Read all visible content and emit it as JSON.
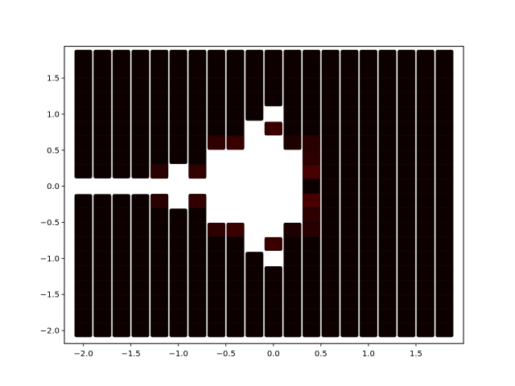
{
  "chart_data": {
    "type": "heatmap",
    "title": "",
    "xlabel": "",
    "ylabel": "",
    "xlim": [
      -2.2,
      2.0
    ],
    "ylim": [
      -2.18,
      1.94
    ],
    "grid": false,
    "cell_size": 0.2,
    "columns": [
      {
        "x": -2.0,
        "ranges": [
          [
            -2.1,
            -0.1
          ],
          [
            0.1,
            1.9
          ]
        ]
      },
      {
        "x": -1.8,
        "ranges": [
          [
            -2.1,
            -0.1
          ],
          [
            0.1,
            1.9
          ]
        ]
      },
      {
        "x": -1.6,
        "ranges": [
          [
            -2.1,
            -0.1
          ],
          [
            0.1,
            1.9
          ]
        ]
      },
      {
        "x": -1.4,
        "ranges": [
          [
            -2.1,
            -0.1
          ],
          [
            0.1,
            1.9
          ]
        ]
      },
      {
        "x": -1.2,
        "ranges": [
          [
            -2.1,
            -0.1
          ],
          [
            0.1,
            1.9
          ]
        ]
      },
      {
        "x": -1.0,
        "ranges": [
          [
            -2.1,
            -0.3
          ],
          [
            0.3,
            1.9
          ]
        ]
      },
      {
        "x": -0.8,
        "ranges": [
          [
            -2.1,
            -0.1
          ],
          [
            0.1,
            1.9
          ]
        ]
      },
      {
        "x": -0.6,
        "ranges": [
          [
            -2.1,
            -0.5
          ],
          [
            0.5,
            1.9
          ]
        ]
      },
      {
        "x": -0.4,
        "ranges": [
          [
            -2.1,
            -0.5
          ],
          [
            0.5,
            1.9
          ]
        ]
      },
      {
        "x": -0.2,
        "ranges": [
          [
            -2.1,
            -0.9
          ],
          [
            0.9,
            1.9
          ]
        ]
      },
      {
        "x": 0.0,
        "ranges": [
          [
            -2.1,
            -1.1
          ],
          [
            -0.9,
            -0.7
          ],
          [
            0.7,
            0.9
          ],
          [
            1.1,
            1.9
          ]
        ]
      },
      {
        "x": 0.2,
        "ranges": [
          [
            -2.1,
            -0.5
          ],
          [
            0.5,
            1.9
          ]
        ]
      },
      {
        "x": 0.4,
        "ranges": [
          [
            -2.1,
            1.9
          ]
        ]
      },
      {
        "x": 0.6,
        "ranges": [
          [
            -2.1,
            1.9
          ]
        ]
      },
      {
        "x": 0.8,
        "ranges": [
          [
            -2.1,
            1.9
          ]
        ]
      },
      {
        "x": 1.0,
        "ranges": [
          [
            -2.1,
            1.9
          ]
        ]
      },
      {
        "x": 1.2,
        "ranges": [
          [
            -2.1,
            1.9
          ]
        ]
      },
      {
        "x": 1.4,
        "ranges": [
          [
            -2.1,
            1.9
          ]
        ]
      },
      {
        "x": 1.6,
        "ranges": [
          [
            -2.1,
            1.9
          ]
        ]
      },
      {
        "x": 1.8,
        "ranges": [
          [
            -2.1,
            1.9
          ]
        ]
      }
    ],
    "highlights": [
      {
        "x": -1.2,
        "y": 0.2,
        "level": 0.25
      },
      {
        "x": -1.2,
        "y": -0.2,
        "level": 0.25
      },
      {
        "x": -0.8,
        "y": 0.2,
        "level": 0.35
      },
      {
        "x": -0.8,
        "y": -0.2,
        "level": 0.35
      },
      {
        "x": -0.6,
        "y": 0.6,
        "level": 0.3
      },
      {
        "x": -0.6,
        "y": -0.6,
        "level": 0.3
      },
      {
        "x": -0.4,
        "y": 0.6,
        "level": 0.4
      },
      {
        "x": -0.4,
        "y": -0.6,
        "level": 0.4
      },
      {
        "x": 0.0,
        "y": 0.8,
        "level": 0.4
      },
      {
        "x": 0.0,
        "y": -0.8,
        "level": 0.4
      },
      {
        "x": 0.4,
        "y": 0.6,
        "level": 0.25
      },
      {
        "x": 0.4,
        "y": 0.4,
        "level": 0.3
      },
      {
        "x": 0.4,
        "y": 0.2,
        "level": 0.55
      },
      {
        "x": 0.4,
        "y": -0.2,
        "level": 0.55
      },
      {
        "x": 0.4,
        "y": -0.4,
        "level": 0.3
      },
      {
        "x": 0.4,
        "y": -0.6,
        "level": 0.25
      },
      {
        "x": 0.2,
        "y": 0.6,
        "level": 0.15
      },
      {
        "x": 0.2,
        "y": -0.6,
        "level": 0.15
      }
    ],
    "x_ticks": [
      {
        "value": -2.0,
        "label": "−2.0"
      },
      {
        "value": -1.5,
        "label": "−1.5"
      },
      {
        "value": -1.0,
        "label": "−1.0"
      },
      {
        "value": -0.5,
        "label": "−0.5"
      },
      {
        "value": 0.0,
        "label": "0.0"
      },
      {
        "value": 0.5,
        "label": "0.5"
      },
      {
        "value": 1.0,
        "label": "1.0"
      },
      {
        "value": 1.5,
        "label": "1.5"
      }
    ],
    "y_ticks": [
      {
        "value": 1.5,
        "label": "1.5"
      },
      {
        "value": 1.0,
        "label": "1.0"
      },
      {
        "value": 0.5,
        "label": "0.5"
      },
      {
        "value": 0.0,
        "label": "0.0"
      },
      {
        "value": -0.5,
        "label": "−0.5"
      },
      {
        "value": -1.0,
        "label": "−1.0"
      },
      {
        "value": -1.5,
        "label": "−1.5"
      },
      {
        "value": -2.0,
        "label": "−2.0"
      }
    ],
    "colors": {
      "cell_base": "#0d0000",
      "cell_hot": "#7a0000",
      "cell_edge": "#2a2a2a",
      "axes": "#000000",
      "background": "#ffffff"
    }
  }
}
